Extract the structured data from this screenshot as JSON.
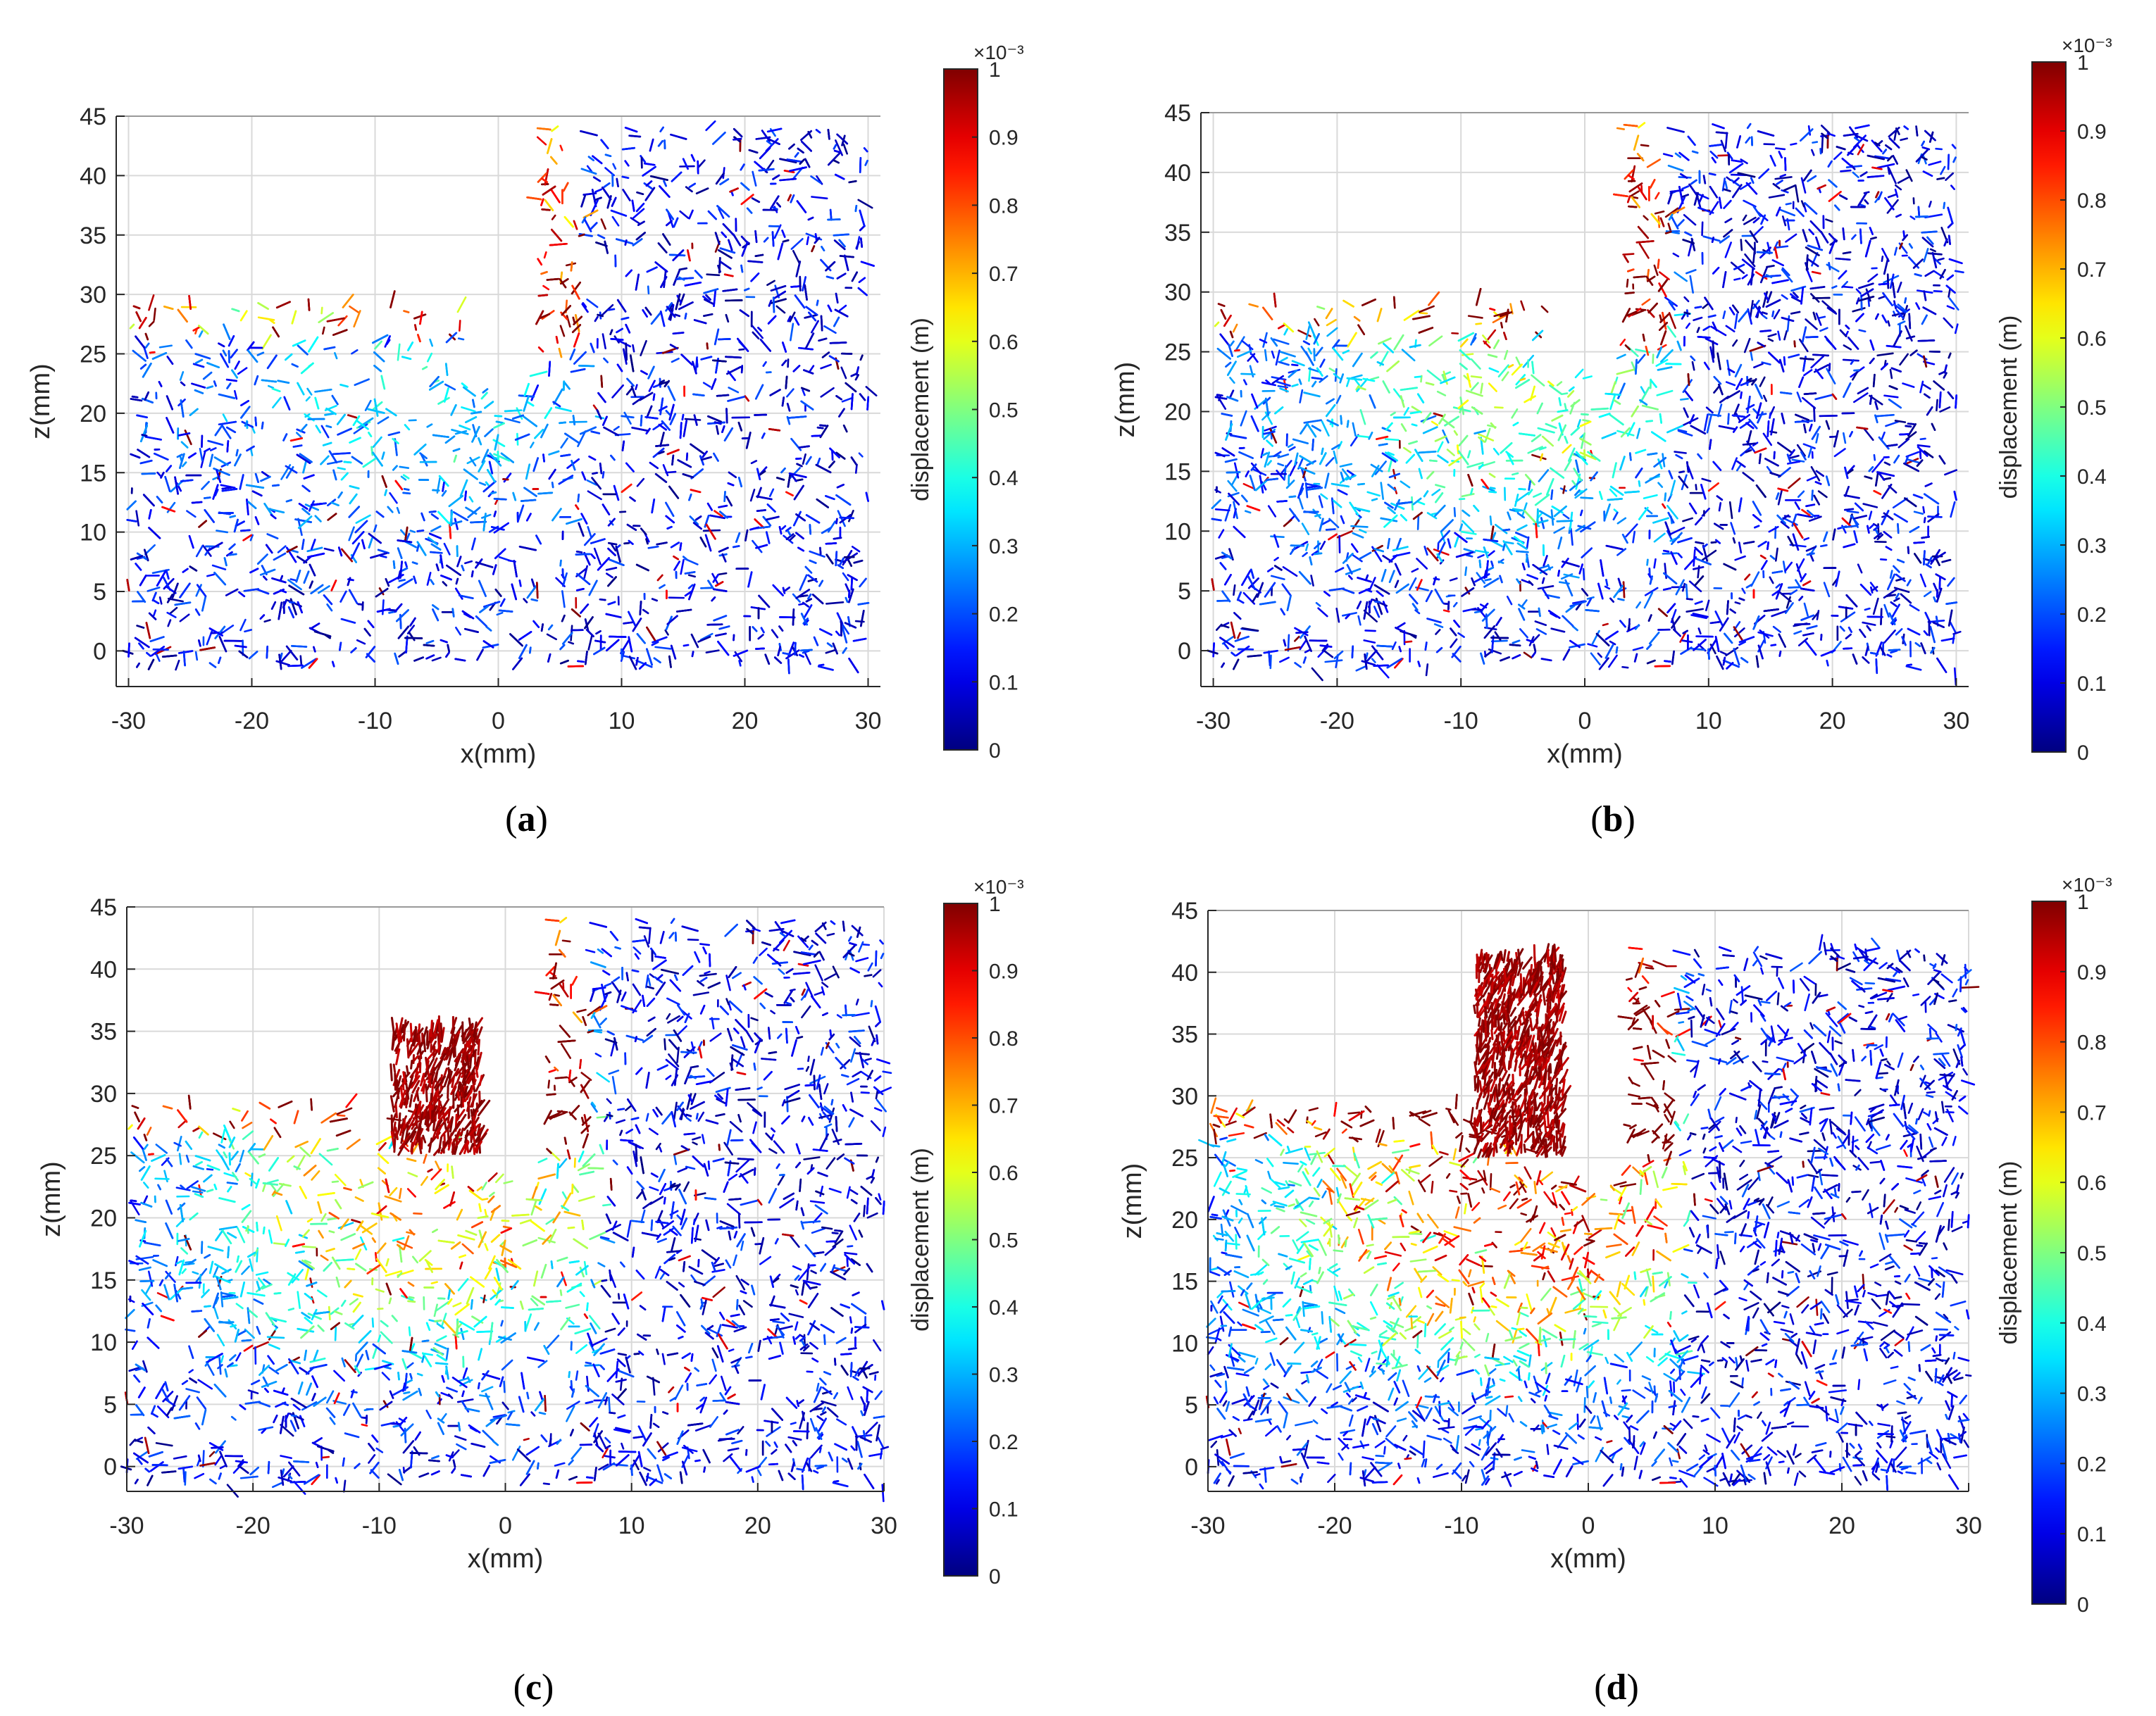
{
  "figure": {
    "panels": [
      {
        "label": "a",
        "caption": "(a)"
      },
      {
        "label": "b",
        "caption": "(b)"
      },
      {
        "label": "c",
        "caption": "(c)"
      },
      {
        "label": "d",
        "caption": "(d)"
      }
    ]
  },
  "colors": {
    "colormap": "jet",
    "axis": "#262626",
    "grid": "#d9d9d9"
  },
  "chart_data": [
    {
      "id": "a",
      "type": "scatter",
      "title": "",
      "caption": "(a)",
      "xlabel": "x(mm)",
      "ylabel": "z(mm)",
      "xlim": [
        -31,
        31
      ],
      "ylim": [
        -3,
        45
      ],
      "xticks": [
        "-30",
        "-20",
        "-10",
        "0",
        "10",
        "20",
        "30"
      ],
      "yticks": [
        "0",
        "5",
        "10",
        "15",
        "20",
        "25",
        "30",
        "35",
        "40",
        "45"
      ],
      "grid": true,
      "colorbar": {
        "label": "displacement (m)",
        "multiplier": "×10⁻³",
        "range": [
          0,
          1
        ],
        "ticks": [
          "0",
          "0.1",
          "0.2",
          "0.3",
          "0.4",
          "0.5",
          "0.6",
          "0.7",
          "0.8",
          "0.9",
          "1"
        ]
      },
      "specimen_outline": {
        "left_block_top_z": 29,
        "right_block_top_z": 44,
        "notch_bottom_z": 23,
        "notch_x": [
          -3,
          3
        ],
        "x_range": [
          -30,
          30
        ]
      },
      "displacement_level": 0.2,
      "ejected_particles": false
    },
    {
      "id": "b",
      "type": "scatter",
      "title": "",
      "caption": "(b)",
      "xlabel": "x(mm)",
      "ylabel": "z(mm)",
      "xlim": [
        -31,
        31
      ],
      "ylim": [
        -3,
        45
      ],
      "xticks": [
        "-30",
        "-20",
        "-10",
        "0",
        "10",
        "20",
        "30"
      ],
      "yticks": [
        "0",
        "5",
        "10",
        "15",
        "20",
        "25",
        "30",
        "35",
        "40",
        "45"
      ],
      "grid": true,
      "colorbar": {
        "label": "displacement (m)",
        "multiplier": "×10⁻³",
        "range": [
          0,
          1
        ],
        "ticks": [
          "0",
          "0.1",
          "0.2",
          "0.3",
          "0.4",
          "0.5",
          "0.6",
          "0.7",
          "0.8",
          "0.9",
          "1"
        ]
      },
      "specimen_outline": {
        "left_block_top_z": 29,
        "right_block_top_z": 44,
        "notch_bottom_z": 23,
        "notch_x": [
          -3,
          3
        ],
        "x_range": [
          -30,
          30
        ]
      },
      "displacement_level": 0.35,
      "ejected_particles": false
    },
    {
      "id": "c",
      "type": "scatter",
      "title": "",
      "caption": "(c)",
      "xlabel": "x(mm)",
      "ylabel": "z(mm)",
      "xlim": [
        -30,
        30
      ],
      "ylim": [
        -2,
        45
      ],
      "xticks": [
        "-30",
        "-20",
        "-10",
        "0",
        "10",
        "20",
        "30"
      ],
      "yticks": [
        "0",
        "5",
        "10",
        "15",
        "20",
        "25",
        "30",
        "35",
        "40",
        "45"
      ],
      "grid": true,
      "colorbar": {
        "label": "displacement (m)",
        "multiplier": "×10⁻³",
        "range": [
          0,
          1
        ],
        "ticks": [
          "0",
          "0.1",
          "0.2",
          "0.3",
          "0.4",
          "0.5",
          "0.6",
          "0.7",
          "0.8",
          "0.9",
          "1"
        ]
      },
      "specimen_outline": {
        "left_block_top_z": 29,
        "right_block_top_z": 44,
        "notch_bottom_z": 23,
        "notch_x": [
          -3,
          3
        ],
        "x_range": [
          -30,
          30
        ]
      },
      "displacement_level": 0.55,
      "ejected_particles": true
    },
    {
      "id": "d",
      "type": "scatter",
      "title": "",
      "caption": "(d)",
      "xlabel": "x(mm)",
      "ylabel": "z(mm)",
      "xlim": [
        -30,
        30
      ],
      "ylim": [
        -2,
        45
      ],
      "xticks": [
        "-30",
        "-20",
        "-10",
        "0",
        "10",
        "20",
        "30"
      ],
      "yticks": [
        "0",
        "5",
        "10",
        "15",
        "20",
        "25",
        "30",
        "35",
        "40",
        "45"
      ],
      "grid": true,
      "colorbar": {
        "label": "displacement (m)",
        "multiplier": "×10⁻³",
        "range": [
          0,
          1
        ],
        "ticks": [
          "0",
          "0.1",
          "0.2",
          "0.3",
          "0.4",
          "0.5",
          "0.6",
          "0.7",
          "0.8",
          "0.9",
          "1"
        ]
      },
      "specimen_outline": {
        "left_block_top_z": 29,
        "right_block_top_z": 42,
        "notch_bottom_z": 23,
        "notch_x": [
          -3,
          3
        ],
        "x_range": [
          -30,
          30
        ]
      },
      "displacement_level": 0.75,
      "ejected_particles": true
    }
  ]
}
